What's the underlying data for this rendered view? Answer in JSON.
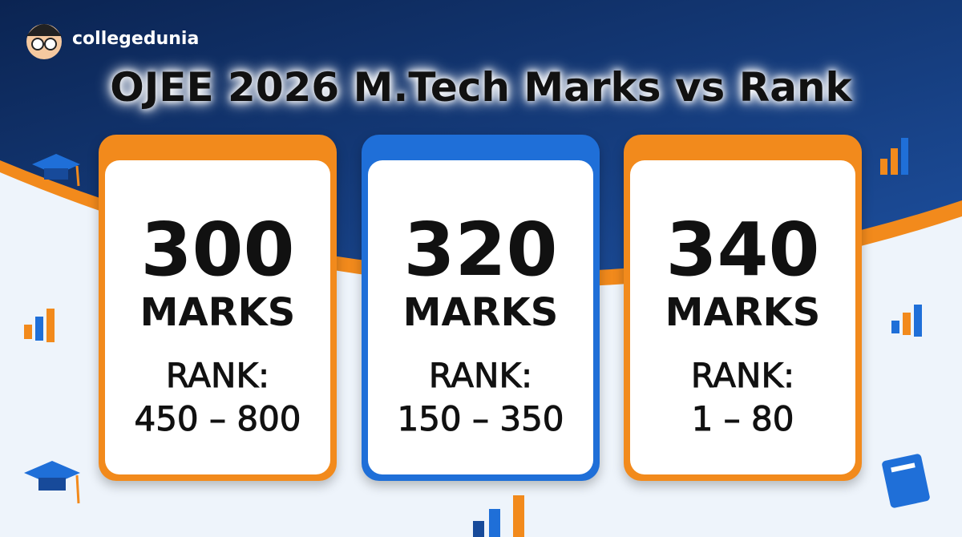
{
  "logo": {
    "text": "collegedunia"
  },
  "title": "OJEE 2026 M.Tech Marks vs Rank",
  "cards": [
    {
      "marks": "300",
      "marks_label": "MARKS",
      "rank_label": "RANK:",
      "rank": "450 – 800"
    },
    {
      "marks": "320",
      "marks_label": "MARKS",
      "rank_label": "RANK:",
      "rank": "150 – 350"
    },
    {
      "marks": "340",
      "marks_label": "MARKS",
      "rank_label": "RANK:",
      "rank": "1 – 80"
    }
  ]
}
